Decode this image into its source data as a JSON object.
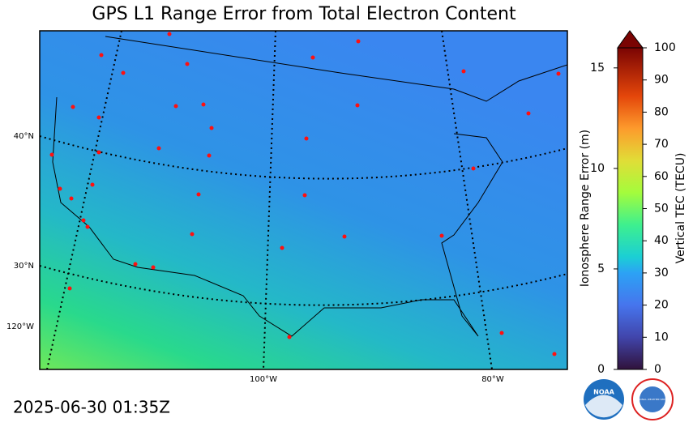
{
  "title": "GPS L1 Range Error from Total Electron Content",
  "timestamp": "2025-06-30 01:35Z",
  "map": {
    "lat_labels": [
      "40°N",
      "30°N"
    ],
    "lon_labels": [
      "120°W",
      "100°W",
      "80°W"
    ]
  },
  "colorbar": {
    "left_label": "Ionosphere Range Error (m)",
    "left_lim": [
      0,
      16
    ],
    "left_ticks": [
      0,
      5,
      10,
      15
    ],
    "right_label": "Vertical TEC (TECU)",
    "right_lim": [
      0,
      100
    ],
    "right_ticks": [
      0,
      10,
      20,
      30,
      40,
      50,
      60,
      70,
      80,
      90,
      100
    ]
  },
  "logos": {
    "noaa": "NOAA",
    "nws": "NATIONAL WEATHER SERVICE"
  }
}
